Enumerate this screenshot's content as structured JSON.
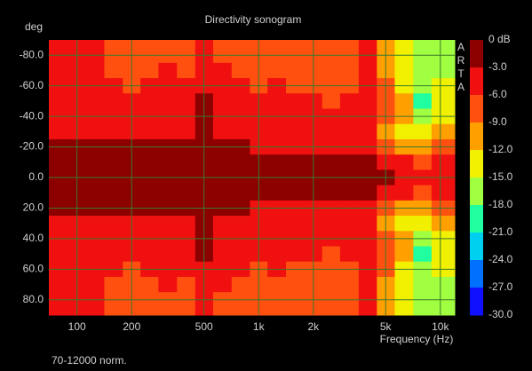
{
  "chart_data": {
    "type": "heatmap",
    "title": "Directivity sonogram",
    "y_label": "deg",
    "x_label": "Frequency (Hz)",
    "watermark": "ARTA",
    "footnote": "70-12000 norm.",
    "x_log": true,
    "grid": true,
    "grid_color": "#3a7a2a",
    "xlim": [
      70,
      12000
    ],
    "xticks": [
      100,
      200,
      500,
      {
        "value": 1000,
        "label": "1k"
      },
      {
        "value": 2000,
        "label": "2k"
      },
      {
        "value": 5000,
        "label": "5k"
      },
      {
        "value": 10000,
        "label": "10k"
      }
    ],
    "ylim": [
      -90,
      90
    ],
    "yticks": [
      {
        "value": -80,
        "label": "-80.0"
      },
      {
        "value": -60,
        "label": "-60.0"
      },
      {
        "value": -40,
        "label": "-40.0"
      },
      {
        "value": -20,
        "label": "-20.0"
      },
      {
        "value": 0,
        "label": "0.0"
      },
      {
        "value": 20,
        "label": "20.0"
      },
      {
        "value": 40,
        "label": "40.0"
      },
      {
        "value": 60,
        "label": "60.0"
      },
      {
        "value": 80,
        "label": "80.0"
      }
    ],
    "x": [
      80,
      100,
      125,
      160,
      200,
      250,
      315,
      400,
      500,
      630,
      800,
      1000,
      1250,
      1600,
      2000,
      2500,
      3150,
      4000,
      5000,
      6300,
      8000,
      10000
    ],
    "y": [
      -90,
      -80,
      -70,
      -60,
      -50,
      -40,
      -30,
      -20,
      -10,
      0,
      10,
      20,
      30,
      40,
      50,
      60,
      70,
      80,
      90
    ],
    "z": [
      [
        -4,
        -4,
        -4,
        -7,
        -8,
        -7,
        -7,
        -8,
        -5,
        -7,
        -8,
        -8,
        -7,
        -8,
        -8,
        -8,
        -8,
        -5,
        -10,
        -14,
        -16,
        -15
      ],
      [
        -4,
        -4,
        -4,
        -7,
        -8,
        -7,
        -7,
        -8,
        -5,
        -7,
        -8,
        -8,
        -7,
        -8,
        -8,
        -8,
        -8,
        -5,
        -10,
        -14,
        -16,
        -15
      ],
      [
        -4,
        -4,
        -4,
        -7,
        -7,
        -7,
        -5,
        -7,
        -4,
        -5,
        -7,
        -8,
        -7,
        -7,
        -8,
        -8,
        -7,
        -5,
        -10,
        -14,
        -16,
        -15
      ],
      [
        -4,
        -4,
        -4,
        -5,
        -7,
        -5,
        -5,
        -5,
        -4,
        -4,
        -5,
        -7,
        -5,
        -7,
        -7,
        -8,
        -7,
        -5,
        -8,
        -13,
        -17,
        -13
      ],
      [
        -4,
        -4,
        -4,
        -4,
        -5,
        -4,
        -4,
        -4,
        -2,
        -4,
        -5,
        -5,
        -5,
        -5,
        -5,
        -7,
        -5,
        -5,
        -6,
        -10,
        -19,
        -14
      ],
      [
        -4,
        -4,
        -4,
        -4,
        -4,
        -4,
        -4,
        -4,
        -2,
        -4,
        -4,
        -4,
        -4,
        -5,
        -5,
        -5,
        -5,
        -5,
        -8,
        -11,
        -16,
        -13
      ],
      [
        -4,
        -4,
        -4,
        -4,
        -4,
        -4,
        -4,
        -4,
        -2,
        -4,
        -4,
        -4,
        -4,
        -4,
        -4,
        -5,
        -5,
        -5,
        -10,
        -13,
        -14,
        -11
      ],
      [
        -2,
        -2,
        -2,
        -2,
        -2,
        -2,
        -2,
        -2,
        -2,
        -2,
        -2,
        -3,
        -4,
        -4,
        -4,
        -4,
        -4,
        -4,
        -7,
        -10,
        -11,
        -8
      ],
      [
        -1,
        -1,
        -1,
        -1,
        -1,
        -1,
        -1,
        -1,
        -1,
        -1,
        -2,
        -1,
        -2,
        -1,
        -2,
        -2,
        -2,
        -2,
        -4,
        -5,
        -6,
        -5
      ],
      [
        -1,
        -1,
        -1,
        -1,
        -1,
        -1,
        -1,
        -1,
        -1,
        -1,
        -1,
        -1,
        -1,
        -1,
        -1,
        -1,
        -1,
        -1,
        -2,
        -4,
        -5,
        -4
      ],
      [
        -1,
        -1,
        -1,
        -1,
        -1,
        -1,
        -1,
        -1,
        -1,
        -1,
        -2,
        -1,
        -2,
        -1,
        -2,
        -2,
        -2,
        -2,
        -4,
        -5,
        -6,
        -5
      ],
      [
        -2,
        -2,
        -2,
        -2,
        -2,
        -2,
        -2,
        -2,
        -2,
        -2,
        -2,
        -3,
        -4,
        -4,
        -4,
        -4,
        -4,
        -4,
        -7,
        -10,
        -11,
        -8
      ],
      [
        -4,
        -4,
        -4,
        -4,
        -4,
        -4,
        -4,
        -4,
        -2,
        -4,
        -4,
        -4,
        -4,
        -4,
        -4,
        -5,
        -5,
        -5,
        -10,
        -13,
        -14,
        -11
      ],
      [
        -4,
        -4,
        -4,
        -4,
        -4,
        -4,
        -4,
        -4,
        -2,
        -4,
        -4,
        -4,
        -4,
        -5,
        -5,
        -5,
        -5,
        -5,
        -8,
        -11,
        -16,
        -13
      ],
      [
        -4,
        -4,
        -4,
        -4,
        -5,
        -4,
        -4,
        -4,
        -2,
        -4,
        -5,
        -5,
        -5,
        -5,
        -5,
        -7,
        -5,
        -5,
        -6,
        -10,
        -19,
        -14
      ],
      [
        -4,
        -4,
        -4,
        -5,
        -7,
        -5,
        -5,
        -5,
        -4,
        -4,
        -5,
        -7,
        -5,
        -7,
        -7,
        -8,
        -7,
        -5,
        -8,
        -13,
        -17,
        -13
      ],
      [
        -4,
        -4,
        -4,
        -7,
        -7,
        -7,
        -5,
        -7,
        -4,
        -5,
        -7,
        -8,
        -7,
        -7,
        -8,
        -8,
        -7,
        -5,
        -10,
        -14,
        -16,
        -15
      ],
      [
        -4,
        -4,
        -4,
        -7,
        -8,
        -7,
        -7,
        -8,
        -5,
        -7,
        -8,
        -8,
        -7,
        -8,
        -8,
        -8,
        -8,
        -5,
        -10,
        -14,
        -16,
        -15
      ],
      [
        -4,
        -4,
        -4,
        -7,
        -8,
        -7,
        -7,
        -8,
        -5,
        -7,
        -8,
        -8,
        -7,
        -8,
        -8,
        -8,
        -8,
        -5,
        -10,
        -14,
        -16,
        -15
      ]
    ],
    "colorbar_ticks": [
      {
        "value": 0,
        "label": "0 dB"
      },
      {
        "value": -3,
        "label": "-3.0"
      },
      {
        "value": -6,
        "label": "-6.0"
      },
      {
        "value": -9,
        "label": "-9.0"
      },
      {
        "value": -12,
        "label": "-12.0"
      },
      {
        "value": -15,
        "label": "-15.0"
      },
      {
        "value": -18,
        "label": "-18.0"
      },
      {
        "value": -21,
        "label": "-21.0"
      },
      {
        "value": -24,
        "label": "-24.0"
      },
      {
        "value": -27,
        "label": "-27.0"
      },
      {
        "value": -30,
        "label": "-30.0"
      }
    ],
    "colors": [
      "#8c0000",
      "#f01010",
      "#ff5010",
      "#ffa000",
      "#f0f000",
      "#a0ff40",
      "#20ffa0",
      "#00d0f0",
      "#0070ff",
      "#1010ff"
    ]
  }
}
